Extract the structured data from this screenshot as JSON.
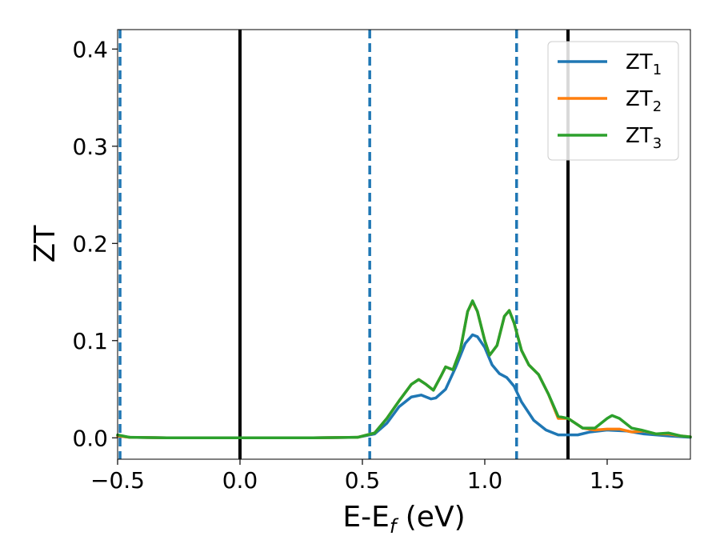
{
  "chart_data": {
    "type": "line",
    "xlabel": "E-E",
    "xlabel_sub": "f",
    "xlabel_unit": " (eV)",
    "ylabel": "ZT",
    "xlim": [
      -0.5,
      1.84
    ],
    "ylim": [
      -0.022,
      0.42
    ],
    "xticks": [
      -0.5,
      0.0,
      0.5,
      1.0,
      1.5
    ],
    "xtick_labels": [
      "−0.5",
      "0.0",
      "0.5",
      "1.0",
      "1.5"
    ],
    "yticks": [
      0.0,
      0.1,
      0.2,
      0.3,
      0.4
    ],
    "ytick_labels": [
      "0.0",
      "0.1",
      "0.2",
      "0.3",
      "0.4"
    ],
    "legend_position": "top-right",
    "vlines": [
      {
        "x": -0.49,
        "style": "dashed",
        "color": "#1f77b4"
      },
      {
        "x": 0.0,
        "style": "solid",
        "color": "#000000"
      },
      {
        "x": 0.53,
        "style": "dashed",
        "color": "#1f77b4"
      },
      {
        "x": 1.13,
        "style": "dashed",
        "color": "#1f77b4"
      },
      {
        "x": 1.34,
        "style": "solid",
        "color": "#000000"
      }
    ],
    "series": [
      {
        "name": "ZT",
        "sub": "1",
        "color": "#1f77b4",
        "points": [
          [
            -0.5,
            0.002
          ],
          [
            -0.45,
            0.0005
          ],
          [
            -0.3,
            0
          ],
          [
            0,
            0
          ],
          [
            0.3,
            0
          ],
          [
            0.48,
            0.0005
          ],
          [
            0.55,
            0.004
          ],
          [
            0.6,
            0.015
          ],
          [
            0.65,
            0.032
          ],
          [
            0.7,
            0.042
          ],
          [
            0.74,
            0.044
          ],
          [
            0.78,
            0.04
          ],
          [
            0.8,
            0.041
          ],
          [
            0.84,
            0.05
          ],
          [
            0.88,
            0.072
          ],
          [
            0.92,
            0.097
          ],
          [
            0.95,
            0.106
          ],
          [
            0.97,
            0.104
          ],
          [
            1.0,
            0.093
          ],
          [
            1.03,
            0.075
          ],
          [
            1.06,
            0.066
          ],
          [
            1.09,
            0.062
          ],
          [
            1.12,
            0.053
          ],
          [
            1.15,
            0.037
          ],
          [
            1.2,
            0.018
          ],
          [
            1.25,
            0.008
          ],
          [
            1.3,
            0.003
          ],
          [
            1.38,
            0.003
          ],
          [
            1.43,
            0.006
          ],
          [
            1.5,
            0.008
          ],
          [
            1.58,
            0.007
          ],
          [
            1.65,
            0.004
          ],
          [
            1.75,
            0.002
          ],
          [
            1.84,
            0.0005
          ]
        ]
      },
      {
        "name": "ZT",
        "sub": "2",
        "color": "#ff7f0e",
        "points": [
          [
            -0.5,
            0.002
          ],
          [
            -0.45,
            0.0005
          ],
          [
            -0.3,
            0
          ],
          [
            0,
            0
          ],
          [
            0.3,
            0
          ],
          [
            0.48,
            0.0005
          ],
          [
            0.55,
            0.005
          ],
          [
            0.6,
            0.02
          ],
          [
            0.65,
            0.038
          ],
          [
            0.7,
            0.055
          ],
          [
            0.73,
            0.06
          ],
          [
            0.76,
            0.055
          ],
          [
            0.79,
            0.049
          ],
          [
            0.82,
            0.063
          ],
          [
            0.84,
            0.073
          ],
          [
            0.87,
            0.07
          ],
          [
            0.9,
            0.09
          ],
          [
            0.93,
            0.13
          ],
          [
            0.95,
            0.14
          ],
          [
            0.97,
            0.13
          ],
          [
            1.0,
            0.1
          ],
          [
            1.02,
            0.085
          ],
          [
            1.05,
            0.095
          ],
          [
            1.08,
            0.125
          ],
          [
            1.1,
            0.131
          ],
          [
            1.12,
            0.118
          ],
          [
            1.15,
            0.09
          ],
          [
            1.18,
            0.075
          ],
          [
            1.22,
            0.065
          ],
          [
            1.26,
            0.045
          ],
          [
            1.3,
            0.02
          ],
          [
            1.34,
            0.02
          ],
          [
            1.4,
            0.01
          ],
          [
            1.45,
            0.008
          ],
          [
            1.5,
            0.009
          ],
          [
            1.55,
            0.009
          ],
          [
            1.6,
            0.006
          ],
          [
            1.65,
            0.007
          ],
          [
            1.7,
            0.004
          ],
          [
            1.75,
            0.004
          ],
          [
            1.8,
            0.002
          ],
          [
            1.84,
            0.001
          ]
        ]
      },
      {
        "name": "ZT",
        "sub": "3",
        "color": "#2ca02c",
        "points": [
          [
            -0.5,
            0.003
          ],
          [
            -0.45,
            0.0005
          ],
          [
            -0.3,
            0
          ],
          [
            0,
            0
          ],
          [
            0.3,
            0
          ],
          [
            0.48,
            0.0005
          ],
          [
            0.55,
            0.005
          ],
          [
            0.6,
            0.02
          ],
          [
            0.65,
            0.038
          ],
          [
            0.7,
            0.055
          ],
          [
            0.73,
            0.06
          ],
          [
            0.76,
            0.055
          ],
          [
            0.79,
            0.049
          ],
          [
            0.82,
            0.063
          ],
          [
            0.84,
            0.073
          ],
          [
            0.87,
            0.07
          ],
          [
            0.9,
            0.09
          ],
          [
            0.93,
            0.13
          ],
          [
            0.95,
            0.141
          ],
          [
            0.97,
            0.13
          ],
          [
            1.0,
            0.1
          ],
          [
            1.02,
            0.085
          ],
          [
            1.05,
            0.095
          ],
          [
            1.08,
            0.125
          ],
          [
            1.1,
            0.131
          ],
          [
            1.12,
            0.118
          ],
          [
            1.15,
            0.09
          ],
          [
            1.18,
            0.075
          ],
          [
            1.22,
            0.065
          ],
          [
            1.26,
            0.045
          ],
          [
            1.3,
            0.022
          ],
          [
            1.34,
            0.02
          ],
          [
            1.4,
            0.01
          ],
          [
            1.45,
            0.01
          ],
          [
            1.5,
            0.02
          ],
          [
            1.52,
            0.023
          ],
          [
            1.55,
            0.02
          ],
          [
            1.6,
            0.01
          ],
          [
            1.64,
            0.008
          ],
          [
            1.7,
            0.004
          ],
          [
            1.75,
            0.005
          ],
          [
            1.8,
            0.002
          ],
          [
            1.84,
            0.001
          ]
        ]
      }
    ]
  }
}
